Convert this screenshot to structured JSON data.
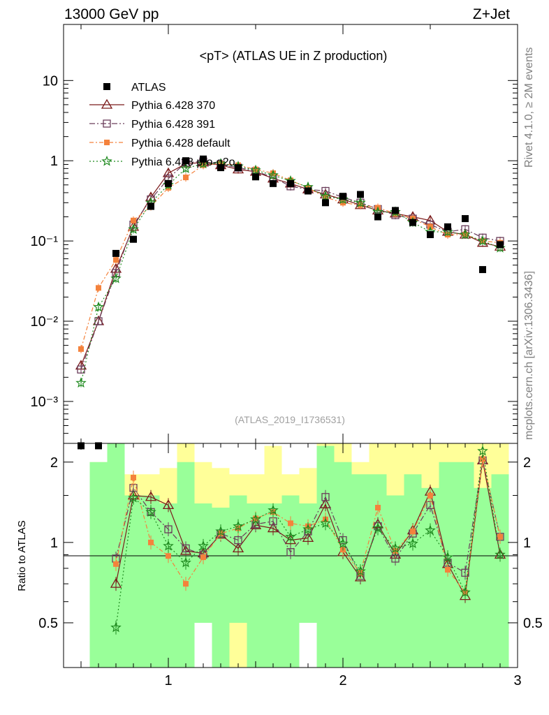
{
  "header": {
    "left": "13000 GeV pp",
    "right": "Z+Jet"
  },
  "side_labels": {
    "rivet": "Rivet 4.1.0, ≥ 2M events",
    "mcplots": "mcplots.cern.ch [arXiv:1306.3436]"
  },
  "colors": {
    "data": "#000000",
    "p370": "#7b1a1a",
    "p391": "#6a3d5a",
    "pdefault": "#f4823c",
    "pq2o": "#1f8a1f",
    "band_green": "#99ff99",
    "band_yellow": "#ffff99"
  },
  "chart_data": [
    {
      "type": "scatter",
      "title": "<pT> (ATLAS UE in Z production)",
      "analysis": "(ATLAS_2019_I1736531)",
      "xlim": [
        0.4,
        3.0
      ],
      "ylim": [
        0.0003,
        50
      ],
      "yscale": "log",
      "ytick_labels": [
        "10",
        "1",
        "10⁻¹",
        "10⁻²",
        "10⁻³"
      ],
      "ytick_values": [
        10,
        1,
        0.1,
        0.01,
        0.001
      ],
      "legend": [
        "ATLAS",
        "Pythia 6.428 370",
        "Pythia 6.428 391",
        "Pythia 6.428 default",
        "Pythia 6.428 pro-q2o"
      ],
      "x": [
        0.5,
        0.6,
        0.7,
        0.8,
        0.9,
        1.0,
        1.1,
        1.2,
        1.3,
        1.4,
        1.5,
        1.6,
        1.7,
        1.8,
        1.9,
        2.0,
        2.1,
        2.2,
        2.3,
        2.4,
        2.5,
        2.6,
        2.7,
        2.8,
        2.9
      ],
      "series": [
        {
          "name": "ATLAS",
          "values": [
            0.00028,
            0.00028,
            0.07,
            0.105,
            0.27,
            0.52,
            1.0,
            1.05,
            0.82,
            0.82,
            0.63,
            0.52,
            0.52,
            0.42,
            0.3,
            0.36,
            0.38,
            0.2,
            0.24,
            0.17,
            0.12,
            0.15,
            0.19,
            0.044,
            0.09
          ]
        },
        {
          "name": "Pythia 6.428 370",
          "values": [
            0.0028,
            0.01,
            0.045,
            0.15,
            0.35,
            0.7,
            0.92,
            0.95,
            0.88,
            0.78,
            0.73,
            0.6,
            0.52,
            0.44,
            0.38,
            0.33,
            0.28,
            0.24,
            0.22,
            0.2,
            0.18,
            0.13,
            0.12,
            0.095,
            0.085
          ]
        },
        {
          "name": "Pythia 6.428 391",
          "values": [
            0.0025,
            0.01,
            0.04,
            0.16,
            0.33,
            0.6,
            0.95,
            0.98,
            0.9,
            0.82,
            0.74,
            0.62,
            0.48,
            0.44,
            0.42,
            0.35,
            0.3,
            0.25,
            0.21,
            0.19,
            0.16,
            0.13,
            0.14,
            0.11,
            0.1
          ]
        },
        {
          "name": "Pythia 6.428 default",
          "values": [
            0.0045,
            0.026,
            0.058,
            0.18,
            0.27,
            0.46,
            0.62,
            0.88,
            0.92,
            0.88,
            0.78,
            0.7,
            0.57,
            0.46,
            0.35,
            0.3,
            0.28,
            0.26,
            0.22,
            0.19,
            0.15,
            0.12,
            0.12,
            0.1,
            0.095
          ]
        },
        {
          "name": "Pythia 6.428 pro-q2o",
          "values": [
            0.0017,
            0.015,
            0.034,
            0.14,
            0.3,
            0.5,
            0.8,
            0.92,
            0.92,
            0.85,
            0.76,
            0.66,
            0.56,
            0.47,
            0.36,
            0.33,
            0.3,
            0.23,
            0.23,
            0.17,
            0.13,
            0.13,
            0.12,
            0.1,
            0.082
          ]
        }
      ]
    },
    {
      "type": "scatter",
      "ylabel": "Ratio to ATLAS",
      "xlim": [
        0.4,
        3.0
      ],
      "ylim": [
        0.34,
        2.35
      ],
      "ytick_labels": [
        "2",
        "1",
        "0.5"
      ],
      "ytick_values": [
        2,
        1,
        0.5
      ],
      "xtick_labels": [
        "1",
        "2",
        "3"
      ],
      "xtick_values": [
        1,
        2,
        3
      ],
      "x": [
        0.7,
        0.8,
        0.9,
        1.0,
        1.1,
        1.2,
        1.3,
        1.4,
        1.5,
        1.6,
        1.7,
        1.8,
        1.9,
        2.0,
        2.1,
        2.2,
        2.3,
        2.4,
        2.5,
        2.6,
        2.7,
        2.8,
        2.9
      ],
      "band_x": [
        0.6,
        0.7,
        0.8,
        0.9,
        1.0,
        1.1,
        1.2,
        1.3,
        1.4,
        1.5,
        1.6,
        1.7,
        1.8,
        1.9,
        2.0,
        2.1,
        2.2,
        2.3,
        2.4,
        2.5,
        2.6,
        2.7,
        2.8,
        2.9
      ],
      "band_green": [
        [
          0.3,
          2.0
        ],
        [
          0.3,
          2.35
        ],
        [
          0.3,
          1.5
        ],
        [
          0.3,
          1.5
        ],
        [
          0.3,
          1.4
        ],
        [
          0.3,
          2.0
        ],
        [
          0.5,
          1.4
        ],
        [
          0.3,
          1.35
        ],
        [
          0.5,
          1.5
        ],
        [
          0.3,
          1.4
        ],
        [
          0.3,
          1.4
        ],
        [
          0.3,
          1.5
        ],
        [
          0.5,
          1.4
        ],
        [
          0.3,
          2.3
        ],
        [
          0.3,
          2.0
        ],
        [
          0.3,
          1.8
        ],
        [
          0.3,
          1.8
        ],
        [
          0.3,
          1.5
        ],
        [
          0.3,
          1.8
        ],
        [
          0.3,
          1.6
        ],
        [
          0.3,
          2.0
        ],
        [
          0.3,
          2.0
        ],
        [
          0.3,
          1.6
        ],
        [
          0.3,
          1.8
        ]
      ],
      "band_yellow": [
        [
          0.3,
          2.0
        ],
        [
          0.3,
          2.35
        ],
        [
          0.7,
          1.8
        ],
        [
          0.7,
          1.8
        ],
        [
          0.7,
          1.9
        ],
        [
          0.3,
          2.35
        ],
        [
          0.65,
          2.0
        ],
        [
          0.7,
          1.9
        ],
        [
          0.3,
          1.8
        ],
        [
          0.6,
          1.8
        ],
        [
          0.3,
          2.3
        ],
        [
          0.6,
          1.8
        ],
        [
          0.6,
          1.9
        ],
        [
          0.3,
          2.35
        ],
        [
          0.3,
          2.35
        ],
        [
          0.6,
          2.0
        ],
        [
          0.3,
          2.35
        ],
        [
          0.55,
          2.35
        ],
        [
          0.3,
          2.35
        ],
        [
          0.55,
          2.35
        ],
        [
          0.3,
          2.35
        ],
        [
          0.3,
          2.35
        ],
        [
          0.55,
          2.35
        ],
        [
          0.3,
          2.35
        ]
      ],
      "series": [
        {
          "name": "Pythia 6.428 370",
          "values": [
            0.7,
            1.5,
            1.48,
            1.38,
            0.93,
            0.91,
            1.07,
            0.95,
            1.16,
            1.13,
            1.02,
            1.04,
            1.39,
            0.92,
            0.74,
            1.17,
            0.9,
            1.11,
            1.55,
            0.83,
            0.63,
            2.03,
            0.9
          ]
        },
        {
          "name": "Pythia 6.428 391",
          "values": [
            0.87,
            1.6,
            1.3,
            1.12,
            0.95,
            0.9,
            1.08,
            1.02,
            1.17,
            1.2,
            0.92,
            1.1,
            1.48,
            1.02,
            0.75,
            1.15,
            0.87,
            1.08,
            1.38,
            0.84,
            0.77,
            2.03,
            1.05
          ]
        },
        {
          "name": "Pythia 6.428 default",
          "values": [
            0.83,
            1.75,
            1.0,
            0.89,
            0.7,
            0.88,
            1.08,
            1.13,
            1.23,
            1.3,
            1.18,
            1.15,
            1.22,
            0.94,
            0.77,
            1.35,
            0.93,
            1.1,
            1.5,
            0.79,
            0.65,
            2.05,
            1.05
          ]
        },
        {
          "name": "Pythia 6.428 pro-q2o",
          "values": [
            0.48,
            1.47,
            1.3,
            0.97,
            0.84,
            0.97,
            1.1,
            1.15,
            1.22,
            1.32,
            1.05,
            1.12,
            1.18,
            0.99,
            0.78,
            1.13,
            0.95,
            0.99,
            1.11,
            0.88,
            0.65,
            2.2,
            0.9
          ]
        }
      ]
    }
  ]
}
